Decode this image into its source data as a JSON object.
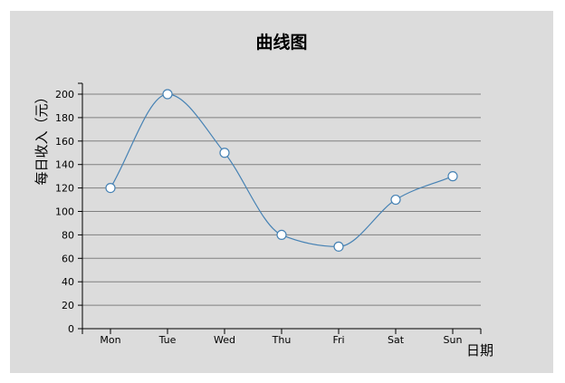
{
  "chart_data": {
    "type": "line",
    "title": "曲线图",
    "xlabel": "日期",
    "ylabel": "每日收入（元）",
    "categories": [
      "Mon",
      "Tue",
      "Wed",
      "Thu",
      "Fri",
      "Sat",
      "Sun"
    ],
    "series": [
      {
        "values": [
          120,
          200,
          150,
          80,
          70,
          110,
          130
        ]
      }
    ],
    "ylim": [
      0,
      200
    ],
    "yticks": [
      0,
      20,
      40,
      60,
      80,
      100,
      120,
      140,
      160,
      180,
      200
    ],
    "smooth": true,
    "grid": "horizontal",
    "colors": {
      "line": "#4682b4",
      "marker_fill": "#ffffff",
      "grid": "#808080",
      "background": "#dcdcdc"
    }
  }
}
